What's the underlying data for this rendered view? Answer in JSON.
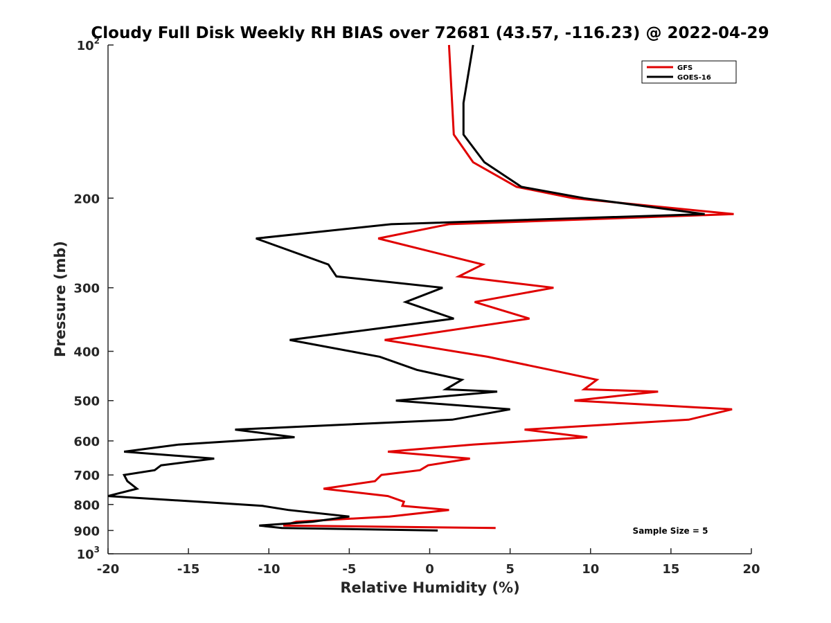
{
  "chart_data": {
    "type": "line",
    "title": "Cloudy Full Disk Weekly RH BIAS over 72681 (43.57, -116.23) @ 2022-04-29",
    "xlabel": "Relative Humidity (%)",
    "ylabel": "Pressure (mb)",
    "xlim": [
      -20,
      20
    ],
    "ylim": [
      100,
      1000
    ],
    "y_scale": "log",
    "y_reversed": true,
    "x_ticks": [
      -20,
      -15,
      -10,
      -5,
      0,
      5,
      10,
      15,
      20
    ],
    "y_ticks": [
      {
        "value": 100,
        "base": "10",
        "exp": "2"
      },
      {
        "value": 200,
        "label": "200"
      },
      {
        "value": 300,
        "label": "300"
      },
      {
        "value": 400,
        "label": "400"
      },
      {
        "value": 500,
        "label": "500"
      },
      {
        "value": 600,
        "label": "600"
      },
      {
        "value": 700,
        "label": "700"
      },
      {
        "value": 800,
        "label": "800"
      },
      {
        "value": 900,
        "label": "900"
      },
      {
        "value": 1000,
        "base": "10",
        "exp": "3"
      }
    ],
    "legend_position": "top-right",
    "annotation": "Sample Size = 5",
    "series": [
      {
        "name": "GFS",
        "color": "#e00000",
        "points": [
          [
            1.2,
            100
          ],
          [
            1.5,
            150
          ],
          [
            2.7,
            170
          ],
          [
            5.4,
            190
          ],
          [
            8.9,
            200
          ],
          [
            18.9,
            215
          ],
          [
            1.2,
            225
          ],
          [
            -3.2,
            240
          ],
          [
            3.3,
            270
          ],
          [
            1.8,
            285
          ],
          [
            7.7,
            300
          ],
          [
            2.8,
            320
          ],
          [
            6.2,
            345
          ],
          [
            -2.8,
            380
          ],
          [
            3.6,
            410
          ],
          [
            7.5,
            435
          ],
          [
            10.4,
            455
          ],
          [
            9.6,
            475
          ],
          [
            14.2,
            480
          ],
          [
            9.0,
            500
          ],
          [
            18.8,
            520
          ],
          [
            16.1,
            545
          ],
          [
            5.9,
            570
          ],
          [
            9.8,
            590
          ],
          [
            2.7,
            610
          ],
          [
            -2.6,
            630
          ],
          [
            2.5,
            650
          ],
          [
            -0.1,
            670
          ],
          [
            -0.6,
            685
          ],
          [
            -3.0,
            700
          ],
          [
            -3.4,
            720
          ],
          [
            -6.6,
            745
          ],
          [
            -2.6,
            770
          ],
          [
            -1.6,
            790
          ],
          [
            -1.7,
            805
          ],
          [
            1.2,
            820
          ],
          [
            -2.5,
            845
          ],
          [
            -8.3,
            865
          ],
          [
            -9.1,
            880
          ],
          [
            4.1,
            890
          ]
        ]
      },
      {
        "name": "GOES-16",
        "color": "#000000",
        "points": [
          [
            2.7,
            100
          ],
          [
            2.1,
            130
          ],
          [
            2.1,
            150
          ],
          [
            3.4,
            170
          ],
          [
            5.7,
            190
          ],
          [
            9.6,
            200
          ],
          [
            17.1,
            215
          ],
          [
            -2.4,
            225
          ],
          [
            -10.8,
            240
          ],
          [
            -6.3,
            270
          ],
          [
            -5.8,
            285
          ],
          [
            0.8,
            300
          ],
          [
            -1.5,
            320
          ],
          [
            1.5,
            345
          ],
          [
            -8.7,
            380
          ],
          [
            -3.1,
            410
          ],
          [
            -0.8,
            435
          ],
          [
            2.0,
            455
          ],
          [
            1.0,
            475
          ],
          [
            4.2,
            480
          ],
          [
            -2.1,
            500
          ],
          [
            5.0,
            520
          ],
          [
            1.4,
            545
          ],
          [
            -12.1,
            570
          ],
          [
            -8.4,
            590
          ],
          [
            -15.6,
            610
          ],
          [
            -19.0,
            630
          ],
          [
            -13.4,
            650
          ],
          [
            -16.7,
            670
          ],
          [
            -17.1,
            685
          ],
          [
            -19.0,
            700
          ],
          [
            -18.8,
            720
          ],
          [
            -18.2,
            745
          ],
          [
            -20.0,
            770
          ],
          [
            -14.4,
            790
          ],
          [
            -10.4,
            805
          ],
          [
            -8.8,
            820
          ],
          [
            -5.0,
            845
          ],
          [
            -7.3,
            865
          ],
          [
            -10.6,
            880
          ],
          [
            -9.2,
            890
          ],
          [
            0.5,
            900
          ]
        ]
      }
    ]
  }
}
